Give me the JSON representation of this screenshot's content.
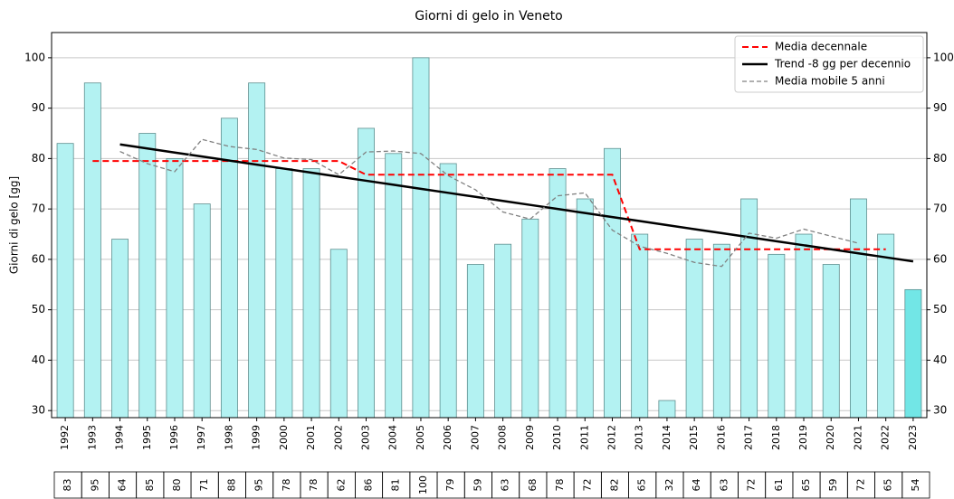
{
  "chart_data": {
    "type": "bar",
    "title": "Giorni di gelo in Veneto",
    "ylabel": "Giorni di gelo [gg]",
    "categories": [
      "1992",
      "1993",
      "1994",
      "1995",
      "1996",
      "1997",
      "1998",
      "1999",
      "2000",
      "2001",
      "2002",
      "2003",
      "2004",
      "2005",
      "2006",
      "2007",
      "2008",
      "2009",
      "2010",
      "2011",
      "2012",
      "2013",
      "2014",
      "2015",
      "2016",
      "2017",
      "2018",
      "2019",
      "2020",
      "2021",
      "2022",
      "2023"
    ],
    "values": [
      83,
      95,
      64,
      85,
      80,
      71,
      88,
      95,
      78,
      78,
      62,
      86,
      81,
      100,
      79,
      59,
      63,
      68,
      78,
      72,
      82,
      65,
      32,
      64,
      63,
      72,
      61,
      65,
      59,
      72,
      65,
      54
    ],
    "color": "#b3f2f2",
    "last_color": "#72e6e6",
    "ylim": [
      28.6,
      105
    ],
    "yticks": [
      30,
      40,
      50,
      60,
      70,
      80,
      90,
      100
    ],
    "grid": true,
    "legend": "upper right",
    "series": [
      {
        "name": "Media decennale",
        "color": "#ff0000",
        "style": "dashed",
        "values": [
          null,
          79.5,
          79.5,
          79.5,
          79.5,
          79.5,
          79.5,
          79.5,
          79.5,
          79.5,
          79.5,
          76.8,
          76.8,
          76.8,
          76.8,
          76.8,
          76.8,
          76.8,
          76.8,
          76.8,
          76.8,
          62,
          62,
          62,
          62,
          62,
          62,
          62,
          62,
          62,
          62,
          null
        ]
      },
      {
        "name": "Trend -8 gg per decennio",
        "color": "#000000",
        "style": "solid",
        "values": [
          null,
          null,
          82.8,
          82,
          81.2,
          80.4,
          79.6,
          78.8,
          78,
          77.2,
          76.4,
          75.6,
          74.8,
          74,
          73.2,
          72.4,
          71.6,
          70.8,
          70,
          69.2,
          68.4,
          67.6,
          66.8,
          66,
          65.2,
          64.4,
          63.6,
          62.8,
          62,
          61.2,
          60.4,
          59.6
        ]
      },
      {
        "name": "Media mobile 5 anni",
        "color": "#808080",
        "style": "dotted",
        "values": [
          null,
          null,
          81.4,
          79,
          77.4,
          83.8,
          82.4,
          81.8,
          80.1,
          79.8,
          76.8,
          81.3,
          81.5,
          81,
          76.6,
          73.8,
          69.4,
          68,
          72.6,
          73.2,
          65.8,
          62.6,
          61.2,
          59.4,
          58.6,
          65.2,
          64.2,
          66,
          64.6,
          63.2,
          null,
          null
        ]
      }
    ]
  }
}
